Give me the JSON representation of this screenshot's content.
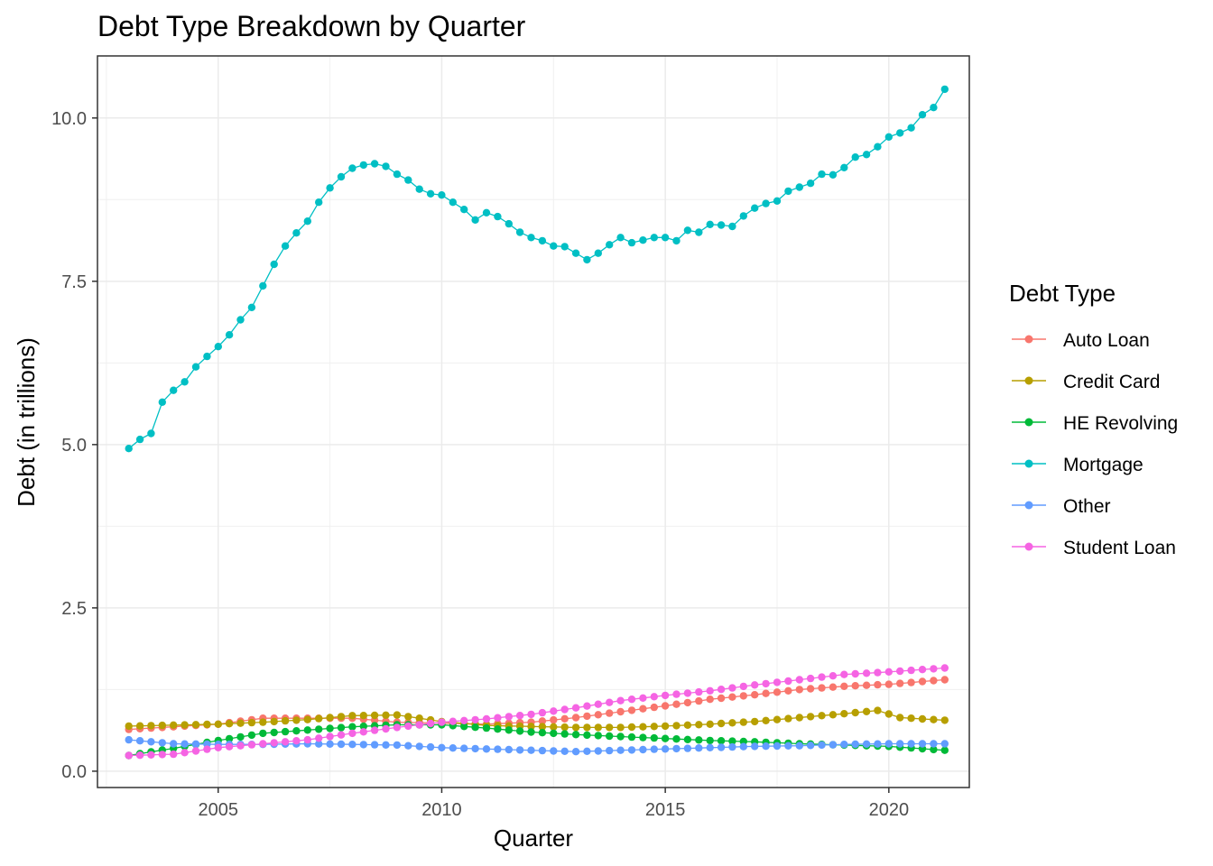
{
  "chart_data": {
    "type": "line",
    "title": "Debt Type Breakdown by Quarter",
    "xlabel": "Quarter",
    "ylabel": "Debt (in trillions)",
    "xlim": [
      2002.3,
      2021.8
    ],
    "ylim": [
      -0.25,
      10.95
    ],
    "x_ticks": [
      2005,
      2010,
      2015,
      2020
    ],
    "x_tick_labels": [
      "2005",
      "2010",
      "2015",
      "2020"
    ],
    "y_ticks": [
      0,
      2.5,
      5,
      7.5,
      10
    ],
    "y_tick_labels": [
      "0.0",
      "2.5",
      "5.0",
      "7.5",
      "10.0"
    ],
    "x_start": 2003,
    "x_step": 0.25,
    "grid": true,
    "legend": {
      "title": "Debt Type",
      "position": "right"
    },
    "series": [
      {
        "name": "Auto Loan",
        "color": "#F8766D",
        "anchors": [
          [
            2003,
            0.64
          ],
          [
            2005,
            0.72
          ],
          [
            2006,
            0.81
          ],
          [
            2008,
            0.81
          ],
          [
            2009,
            0.75
          ],
          [
            2011,
            0.72
          ],
          [
            2012,
            0.75
          ],
          [
            2013,
            0.82
          ],
          [
            2015,
            1.0
          ],
          [
            2016,
            1.1
          ],
          [
            2017,
            1.17
          ],
          [
            2018,
            1.25
          ],
          [
            2019,
            1.3
          ],
          [
            2020,
            1.33
          ],
          [
            2021.25,
            1.4
          ]
        ]
      },
      {
        "name": "Credit Card",
        "color": "#B79F00",
        "anchors": [
          [
            2003,
            0.69
          ],
          [
            2005,
            0.72
          ],
          [
            2006,
            0.75
          ],
          [
            2007,
            0.79
          ],
          [
            2008,
            0.85
          ],
          [
            2009,
            0.86
          ],
          [
            2010,
            0.76
          ],
          [
            2011,
            0.7
          ],
          [
            2013,
            0.67
          ],
          [
            2014,
            0.67
          ],
          [
            2015,
            0.69
          ],
          [
            2016,
            0.72
          ],
          [
            2017,
            0.76
          ],
          [
            2018,
            0.82
          ],
          [
            2019,
            0.88
          ],
          [
            2019.75,
            0.93
          ],
          [
            2020.25,
            0.82
          ],
          [
            2021.25,
            0.78
          ]
        ]
      },
      {
        "name": "HE Revolving",
        "color": "#00BA38",
        "anchors": [
          [
            2003,
            0.24
          ],
          [
            2004,
            0.35
          ],
          [
            2005,
            0.47
          ],
          [
            2006,
            0.58
          ],
          [
            2007,
            0.63
          ],
          [
            2008,
            0.68
          ],
          [
            2009,
            0.71
          ],
          [
            2010,
            0.71
          ],
          [
            2011,
            0.66
          ],
          [
            2012,
            0.6
          ],
          [
            2013,
            0.56
          ],
          [
            2014,
            0.53
          ],
          [
            2015,
            0.5
          ],
          [
            2016,
            0.47
          ],
          [
            2017,
            0.45
          ],
          [
            2018,
            0.42
          ],
          [
            2019,
            0.4
          ],
          [
            2020,
            0.38
          ],
          [
            2021.25,
            0.32
          ]
        ]
      },
      {
        "name": "Mortgage",
        "color": "#00BFC4",
        "values": [
          4.94,
          5.08,
          5.17,
          5.65,
          5.83,
          5.96,
          6.19,
          6.35,
          6.5,
          6.68,
          6.91,
          7.1,
          7.43,
          7.76,
          8.04,
          8.24,
          8.42,
          8.71,
          8.93,
          9.1,
          9.23,
          9.28,
          9.3,
          9.26,
          9.14,
          9.05,
          8.91,
          8.84,
          8.82,
          8.71,
          8.6,
          8.44,
          8.55,
          8.49,
          8.38,
          8.25,
          8.17,
          8.12,
          8.04,
          8.03,
          7.93,
          7.83,
          7.93,
          8.06,
          8.17,
          8.09,
          8.13,
          8.17,
          8.17,
          8.12,
          8.28,
          8.25,
          8.37,
          8.36,
          8.34,
          8.5,
          8.62,
          8.69,
          8.73,
          8.88,
          8.94,
          9.0,
          9.14,
          9.13,
          9.24,
          9.4,
          9.44,
          9.56,
          9.71,
          9.77,
          9.85,
          10.05,
          10.16,
          10.44
        ]
      },
      {
        "name": "Other",
        "color": "#619CFF",
        "anchors": [
          [
            2003,
            0.48
          ],
          [
            2004,
            0.42
          ],
          [
            2005,
            0.41
          ],
          [
            2006,
            0.41
          ],
          [
            2007,
            0.42
          ],
          [
            2008,
            0.41
          ],
          [
            2009,
            0.4
          ],
          [
            2010,
            0.36
          ],
          [
            2011,
            0.34
          ],
          [
            2012,
            0.32
          ],
          [
            2013,
            0.3
          ],
          [
            2014,
            0.32
          ],
          [
            2015,
            0.34
          ],
          [
            2016,
            0.36
          ],
          [
            2017,
            0.38
          ],
          [
            2018,
            0.39
          ],
          [
            2019,
            0.41
          ],
          [
            2020,
            0.42
          ],
          [
            2021.25,
            0.42
          ]
        ]
      },
      {
        "name": "Student Loan",
        "color": "#F564E3",
        "anchors": [
          [
            2003,
            0.24
          ],
          [
            2004,
            0.26
          ],
          [
            2005,
            0.36
          ],
          [
            2006,
            0.42
          ],
          [
            2007,
            0.48
          ],
          [
            2008,
            0.58
          ],
          [
            2009,
            0.67
          ],
          [
            2010,
            0.75
          ],
          [
            2011,
            0.8
          ],
          [
            2012,
            0.87
          ],
          [
            2013,
            0.97
          ],
          [
            2014,
            1.08
          ],
          [
            2015,
            1.16
          ],
          [
            2016,
            1.23
          ],
          [
            2017,
            1.32
          ],
          [
            2018,
            1.4
          ],
          [
            2019,
            1.48
          ],
          [
            2020,
            1.52
          ],
          [
            2021.25,
            1.58
          ]
        ]
      }
    ]
  }
}
